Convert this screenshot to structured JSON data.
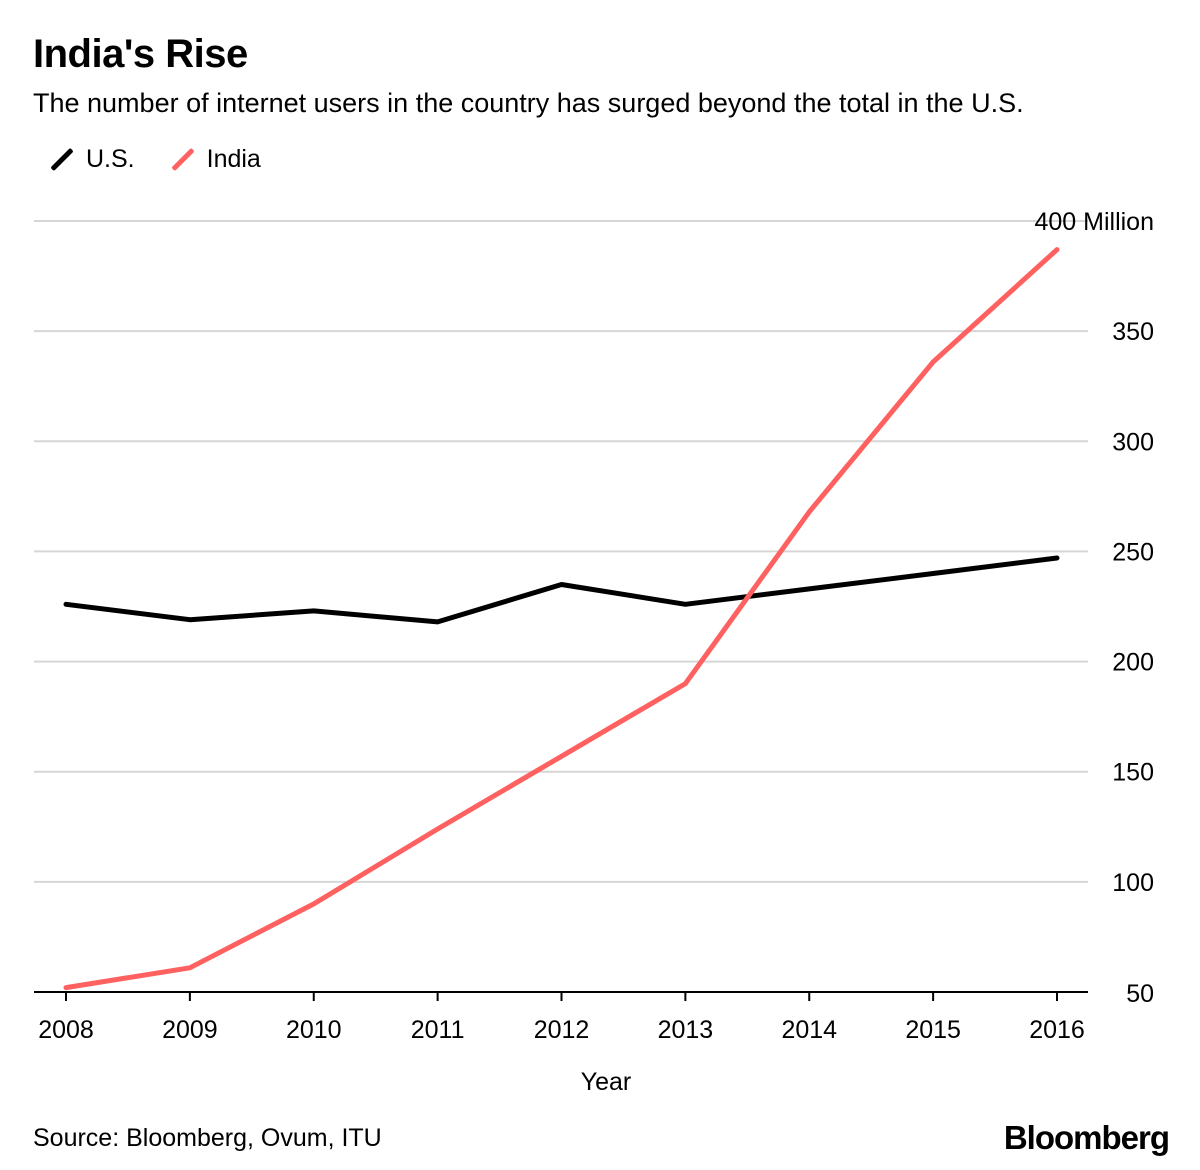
{
  "header": {
    "title": "India's Rise",
    "subtitle": "The number of internet users in the country has surged beyond the total in the U.S."
  },
  "chart_data": {
    "type": "line",
    "title": "India's Rise",
    "subtitle": "The number of internet users in the country has surged beyond the total in the U.S.",
    "x": [
      2008,
      2009,
      2010,
      2011,
      2012,
      2013,
      2014,
      2015,
      2016
    ],
    "x_tick_labels": [
      "2008",
      "2009",
      "2010",
      "2011",
      "2012",
      "2013",
      "2014",
      "2015",
      "2016"
    ],
    "xlabel": "Year",
    "ylabel": "",
    "ylim": [
      50,
      400
    ],
    "y_ticks": [
      50,
      100,
      150,
      200,
      250,
      300,
      350,
      400
    ],
    "y_tick_labels": [
      "50",
      "100",
      "150",
      "200",
      "250",
      "300",
      "350",
      "400 Million"
    ],
    "y_axis_side": "right",
    "grid": true,
    "legend_position": "top-left",
    "series": [
      {
        "name": "U.S.",
        "color": "#000000",
        "values": [
          226,
          219,
          223,
          218,
          235,
          226,
          233,
          240,
          247
        ]
      },
      {
        "name": "India",
        "color": "#ff6161",
        "values": [
          52,
          61,
          90,
          124,
          157,
          190,
          268,
          336,
          387
        ]
      }
    ]
  },
  "footer": {
    "source": "Source: Bloomberg, Ovum, ITU",
    "brand": "Bloomberg"
  }
}
